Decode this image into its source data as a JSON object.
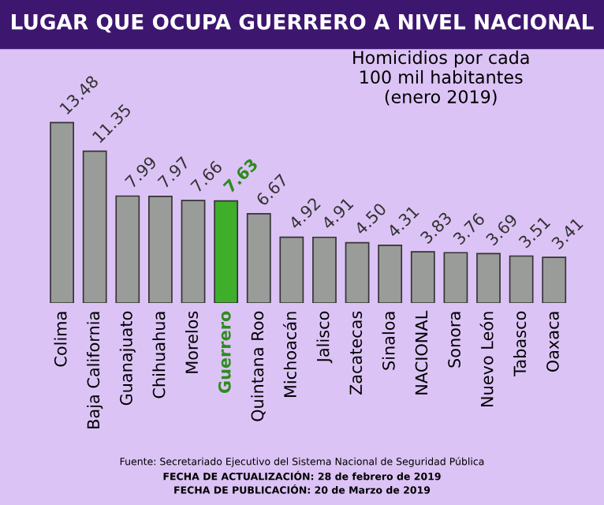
{
  "chart_data": {
    "type": "bar",
    "title": "LUGAR QUE OCUPA GUERRERO A NIVEL NACIONAL",
    "subtitle": "Homicidios por cada\n100 mil habitantes\n(enero 2019)",
    "categories": [
      "Colima",
      "Baja California",
      "Guanajuato",
      "Chihuahua",
      "Morelos",
      "Guerrero",
      "Quintana Roo",
      "Michoacán",
      "Jalisco",
      "Zacatecas",
      "Sinaloa",
      "NACIONAL",
      "Sonora",
      "Nuevo León",
      "Tabasco",
      "Oaxaca"
    ],
    "values": [
      13.48,
      11.35,
      7.99,
      7.97,
      7.66,
      7.63,
      6.67,
      4.92,
      4.91,
      4.5,
      4.31,
      3.83,
      3.76,
      3.69,
      3.51,
      3.41
    ],
    "value_labels": [
      "13.48",
      "11.35",
      "7.99",
      "7.97",
      "7.66",
      "7.63",
      "6.67",
      "4.92",
      "4.91",
      "4.50",
      "4.31",
      "3.83",
      "3.76",
      "3.69",
      "3.51",
      "3.41"
    ],
    "colors": [
      "#9a9c9a",
      "#9a9c9a",
      "#9a9c9a",
      "#9a9c9a",
      "#9a9c9a",
      "#3fae2a",
      "#9a9c9a",
      "#9a9c9a",
      "#9a9c9a",
      "#9a9c9a",
      "#9a9c9a",
      "#9a9c9a",
      "#9a9c9a",
      "#9a9c9a",
      "#9a9c9a",
      "#9a9c9a"
    ],
    "annotations": [
      "Fuente: Secretariado Ejecutivo del Sistema Nacional de Seguridad Pública",
      "FECHA DE ACTUALIZACIÓN: 28 de febrero de 2019",
      "FECHA DE PUBLICACIÓN: 20 de Marzo de 2019"
    ],
    "grid": false,
    "legend": false
  }
}
